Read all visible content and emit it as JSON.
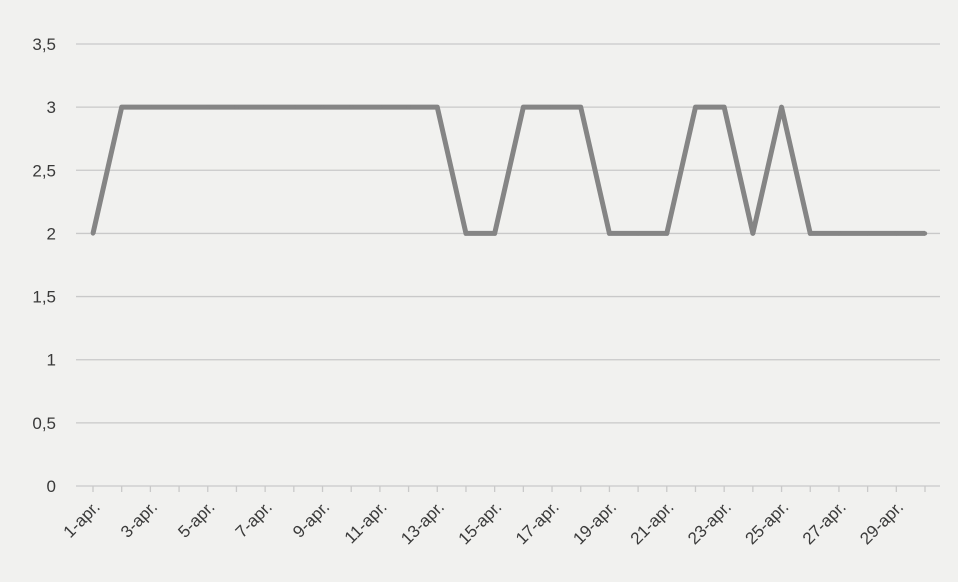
{
  "chart_data": {
    "type": "line",
    "title": "",
    "xlabel": "",
    "ylabel": "",
    "x": [
      "1-apr.",
      "2-apr.",
      "3-apr.",
      "4-apr.",
      "5-apr.",
      "6-apr.",
      "7-apr.",
      "8-apr.",
      "9-apr.",
      "10-apr.",
      "11-apr.",
      "12-apr.",
      "13-apr.",
      "14-apr.",
      "15-apr.",
      "16-apr.",
      "17-apr.",
      "18-apr.",
      "19-apr.",
      "20-apr.",
      "21-apr.",
      "22-apr.",
      "23-apr.",
      "24-apr.",
      "25-apr.",
      "26-apr.",
      "27-apr.",
      "28-apr.",
      "29-apr.",
      "30-apr."
    ],
    "x_tick_labels": [
      "1-apr.",
      "3-apr.",
      "5-apr.",
      "7-apr.",
      "9-apr.",
      "11-apr.",
      "13-apr.",
      "15-apr.",
      "17-apr.",
      "19-apr.",
      "21-apr.",
      "23-apr.",
      "25-apr.",
      "27-apr.",
      "29-apr."
    ],
    "series": [
      {
        "values": [
          2,
          3,
          3,
          3,
          3,
          3,
          3,
          3,
          3,
          3,
          3,
          3,
          3,
          2,
          2,
          3,
          3,
          3,
          2,
          2,
          2,
          3,
          3,
          2,
          3,
          2,
          2,
          2,
          2,
          2
        ]
      }
    ],
    "ylim": [
      0,
      3.5
    ],
    "y_ticks": [
      "0",
      "0,5",
      "1",
      "1,5",
      "2",
      "2,5",
      "3",
      "3,5"
    ],
    "grid": true,
    "legend": "none",
    "colors": {
      "line": "#858585",
      "grid": "#c9c9c9",
      "background": "#f1f1ef"
    }
  }
}
